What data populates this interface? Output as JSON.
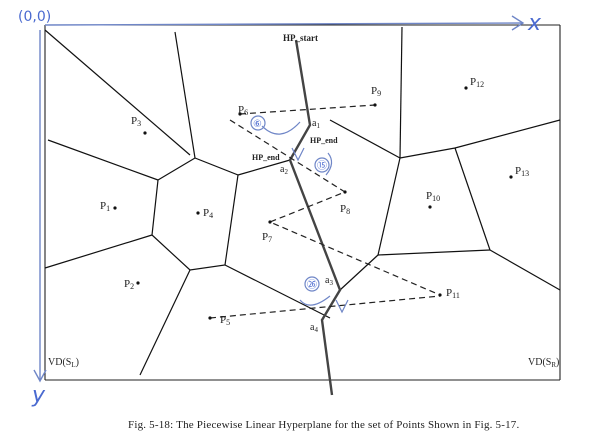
{
  "axes": {
    "origin": "(0,0)",
    "x": "x",
    "y": "y"
  },
  "hyperplane": {
    "start_label": "HP_start",
    "end_label_1": "HP_end",
    "end_label_2": "HP_end"
  },
  "vd_labels": {
    "left_main": "VD(S",
    "left_sub": "L",
    "left_close": ")",
    "right_main": "VD(S",
    "right_sub": "R",
    "right_close": ")"
  },
  "points": [
    {
      "name": "P",
      "sub": "1"
    },
    {
      "name": "P",
      "sub": "2"
    },
    {
      "name": "P",
      "sub": "3"
    },
    {
      "name": "P",
      "sub": "4"
    },
    {
      "name": "P",
      "sub": "5"
    },
    {
      "name": "P",
      "sub": "6"
    },
    {
      "name": "P",
      "sub": "7"
    },
    {
      "name": "P",
      "sub": "8"
    },
    {
      "name": "P",
      "sub": "9"
    },
    {
      "name": "P",
      "sub": "10"
    },
    {
      "name": "P",
      "sub": "11"
    },
    {
      "name": "P",
      "sub": "12"
    },
    {
      "name": "P",
      "sub": "13"
    }
  ],
  "intersections": [
    {
      "name": "a",
      "sub": "1"
    },
    {
      "name": "a",
      "sub": "2"
    },
    {
      "name": "a",
      "sub": "3"
    },
    {
      "name": "a",
      "sub": "4"
    }
  ],
  "circled_marks": [
    "⑥",
    "⑮",
    "㉖"
  ],
  "caption": "Fig. 5-18:  The Piecewise Linear Hyperplane for the set of Points Shown in Fig. 5-17."
}
